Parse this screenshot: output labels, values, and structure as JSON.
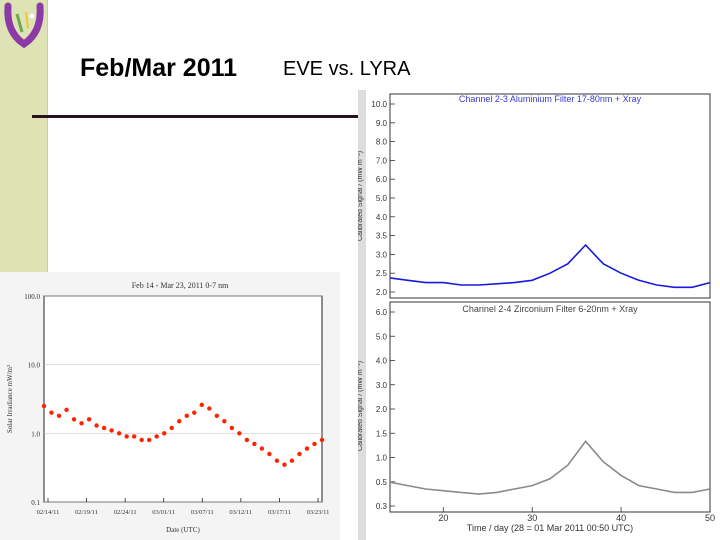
{
  "slide": {
    "title": "Feb/Mar 2011",
    "subtitle": "EVE vs. LYRA"
  },
  "colors": {
    "sidebar": "#dde3b4",
    "rule": "#2b1022",
    "eve_trace": "#ff2200",
    "lyra_ch3": "#1a1adc",
    "lyra_ch4": "#8a8a8a",
    "logo": "#8b3aa8"
  },
  "chart_data": [
    {
      "type": "scatter",
      "title": "Feb 14 - Mar 23, 2011 0-7 nm",
      "xlabel": "Date (UTC)",
      "ylabel": "Solar Irradiance mW/m²",
      "yscale": "log",
      "ylim": [
        0.1,
        100
      ],
      "yticks": [
        "100.0",
        "10.0",
        "1.0",
        "0.1"
      ],
      "xticks": [
        "02/14/11",
        "02/19/11",
        "02/24/11",
        "03/01/11",
        "03/07/11",
        "03/12/11",
        "03/17/11",
        "03/23/11"
      ],
      "xlim": [
        0,
        37
      ],
      "series": [
        {
          "x": [
            0,
            1,
            2,
            3,
            4,
            5,
            6,
            7,
            8,
            9,
            10,
            11,
            12,
            13,
            14,
            15,
            16,
            17,
            18,
            19,
            20,
            21,
            22,
            23,
            24,
            25,
            26,
            27,
            28,
            29,
            30,
            31,
            32,
            33,
            34,
            35,
            36,
            37
          ],
          "y": [
            2.5,
            2.0,
            1.8,
            2.2,
            1.6,
            1.4,
            1.6,
            1.3,
            1.2,
            1.1,
            1.0,
            0.9,
            0.9,
            0.8,
            0.8,
            0.9,
            1.0,
            1.2,
            1.5,
            1.8,
            2.0,
            2.6,
            2.3,
            1.8,
            1.5,
            1.2,
            1.0,
            0.8,
            0.7,
            0.6,
            0.5,
            0.4,
            0.35,
            0.4,
            0.5,
            0.6,
            0.7,
            0.8
          ]
        }
      ]
    },
    {
      "type": "line",
      "title": "Channel 2-3   Aluminium Filter   17-80nm + Xray",
      "ylabel": "Calibrated Signal / (mW m⁻²)",
      "yticks": [
        "10.0",
        "9.0",
        "8.0",
        "7.0",
        "6.0",
        "5.0",
        "4.0",
        "3.5",
        "3.0",
        "2.5",
        "2.0"
      ],
      "ylim": [
        2.0,
        10.0
      ],
      "xlim": [
        14,
        50
      ],
      "series": [
        {
          "x": [
            14,
            16,
            18,
            20,
            22,
            24,
            26,
            28,
            30,
            32,
            34,
            36,
            37,
            38,
            40,
            42,
            44,
            46,
            48,
            50
          ],
          "y": [
            2.6,
            2.5,
            2.4,
            2.4,
            2.3,
            2.3,
            2.35,
            2.4,
            2.5,
            2.8,
            3.2,
            4.0,
            3.6,
            3.2,
            2.8,
            2.5,
            2.3,
            2.2,
            2.2,
            2.4
          ]
        }
      ]
    },
    {
      "type": "line",
      "title": "Channel 2-4   Zirconium Filter   6-20nm + Xray",
      "ylabel": "Calibrated Signal / (mW m⁻²)",
      "yticks": [
        "6.0",
        "5.0",
        "4.0",
        "3.0",
        "2.0",
        "1.5",
        "1.0",
        "0.5",
        "0.3"
      ],
      "ylim": [
        0.3,
        6.0
      ],
      "xlabel": "Time / day (28 = 01 Mar 2011 00:50 UTC)",
      "xticks": [
        "20",
        "30",
        "40",
        "50"
      ],
      "xlim": [
        14,
        50
      ],
      "series": [
        {
          "x": [
            14,
            16,
            18,
            20,
            22,
            24,
            26,
            28,
            30,
            32,
            34,
            36,
            37,
            38,
            40,
            42,
            44,
            46,
            48,
            50
          ],
          "y": [
            1.0,
            0.9,
            0.8,
            0.75,
            0.7,
            0.65,
            0.7,
            0.8,
            0.9,
            1.1,
            1.5,
            2.2,
            1.9,
            1.6,
            1.2,
            0.9,
            0.8,
            0.7,
            0.7,
            0.8
          ]
        }
      ]
    }
  ]
}
